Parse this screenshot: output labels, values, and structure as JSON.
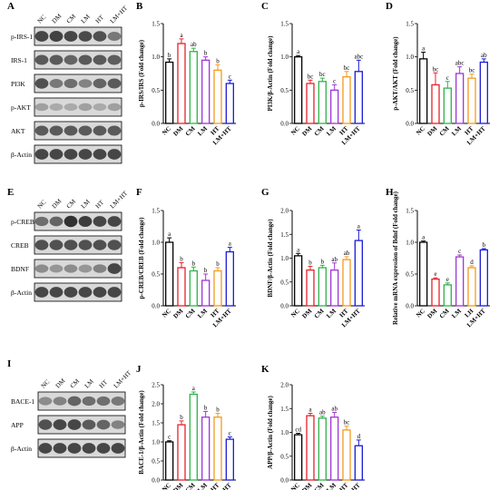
{
  "colors": {
    "NC": "#000000",
    "DM": "#e8202a",
    "CM": "#2fb34a",
    "LM": "#a034d8",
    "HT": "#f39a1c",
    "LM+HT": "#1a1ad8"
  },
  "blots": [
    {
      "panel": "A",
      "lanes": [
        "NC",
        "DM",
        "CM",
        "LM",
        "HT",
        "LM+HT"
      ],
      "bands": [
        {
          "label": "p-IRS-1",
          "intensity": [
            0.8,
            0.82,
            0.8,
            0.78,
            0.75,
            0.55
          ]
        },
        {
          "label": "IRS-1",
          "intensity": [
            0.7,
            0.7,
            0.65,
            0.7,
            0.7,
            0.68
          ]
        },
        {
          "label": "PI3K",
          "intensity": [
            0.75,
            0.55,
            0.6,
            0.5,
            0.65,
            0.7
          ]
        },
        {
          "label": "p-AKT",
          "intensity": [
            0.35,
            0.3,
            0.3,
            0.35,
            0.3,
            0.35
          ]
        },
        {
          "label": "AKT",
          "intensity": [
            0.7,
            0.7,
            0.7,
            0.7,
            0.7,
            0.7
          ]
        },
        {
          "label": "β-Actin",
          "intensity": [
            0.8,
            0.8,
            0.8,
            0.8,
            0.8,
            0.8
          ]
        }
      ]
    },
    {
      "panel": "E",
      "lanes": [
        "NC",
        "DM",
        "CM",
        "LM",
        "HT",
        "LM+HT"
      ],
      "bands": [
        {
          "label": "p-CREB",
          "intensity": [
            0.6,
            0.65,
            0.9,
            0.85,
            0.8,
            0.8
          ]
        },
        {
          "label": "CREB",
          "intensity": [
            0.75,
            0.75,
            0.75,
            0.75,
            0.75,
            0.75
          ]
        },
        {
          "label": "BDNF",
          "intensity": [
            0.45,
            0.4,
            0.45,
            0.4,
            0.5,
            0.8
          ]
        },
        {
          "label": "β-Actin",
          "intensity": [
            0.8,
            0.8,
            0.8,
            0.8,
            0.8,
            0.8
          ]
        }
      ]
    },
    {
      "panel": "I",
      "lanes": [
        "NC",
        "DM",
        "CM",
        "LM",
        "HT",
        "LM+HT"
      ],
      "bands": [
        {
          "label": "BACE-1",
          "intensity": [
            0.45,
            0.5,
            0.65,
            0.6,
            0.6,
            0.55
          ]
        },
        {
          "label": "APP",
          "intensity": [
            0.75,
            0.8,
            0.8,
            0.7,
            0.65,
            0.5
          ]
        },
        {
          "label": "β-Actin",
          "intensity": [
            0.8,
            0.8,
            0.8,
            0.8,
            0.8,
            0.8
          ]
        }
      ]
    }
  ],
  "chart_data": [
    {
      "panel": "B",
      "type": "bar",
      "categories": [
        "NC",
        "DM",
        "CM",
        "LM",
        "HT",
        "LM+HT"
      ],
      "values": [
        0.92,
        1.2,
        1.08,
        0.95,
        0.8,
        0.6
      ],
      "errors": [
        0.05,
        0.07,
        0.05,
        0.05,
        0.08,
        0.05
      ],
      "labels": [
        "b",
        "a",
        "ab",
        "b",
        "b",
        "c"
      ],
      "ylabel": "p-IRS/IRS (Fold change)",
      "ylim": [
        0,
        1.5
      ],
      "yticks": [
        0.0,
        0.5,
        1.0,
        1.5
      ]
    },
    {
      "panel": "C",
      "type": "bar",
      "categories": [
        "NC",
        "DM",
        "CM",
        "LM",
        "HT",
        "LM+HT"
      ],
      "values": [
        1.0,
        0.6,
        0.63,
        0.5,
        0.7,
        0.78
      ],
      "errors": [
        0.02,
        0.05,
        0.05,
        0.08,
        0.08,
        0.17
      ],
      "labels": [
        "a",
        "bc",
        "bc",
        "c",
        "bc",
        "abc"
      ],
      "ylabel": "PI3K/β-Actin (Fold change)",
      "ylim": [
        0,
        1.5
      ],
      "yticks": [
        0.0,
        0.5,
        1.0,
        1.5
      ]
    },
    {
      "panel": "D",
      "type": "bar",
      "categories": [
        "NC",
        "DM",
        "CM",
        "LM",
        "HT",
        "LM+HT"
      ],
      "values": [
        0.97,
        0.58,
        0.53,
        0.75,
        0.68,
        0.92
      ],
      "errors": [
        0.1,
        0.18,
        0.1,
        0.1,
        0.06,
        0.05
      ],
      "labels": [
        "a",
        "bc",
        "c",
        "abc",
        "bc",
        "ab"
      ],
      "ylabel": "p-AKT/AKT (Fold change)",
      "ylim": [
        0,
        1.5
      ],
      "yticks": [
        0.0,
        0.5,
        1.0,
        1.5
      ]
    },
    {
      "panel": "F",
      "type": "bar",
      "categories": [
        "NC",
        "DM",
        "CM",
        "LM",
        "HT",
        "LM+HT"
      ],
      "values": [
        1.0,
        0.6,
        0.55,
        0.4,
        0.55,
        0.85
      ],
      "errors": [
        0.07,
        0.08,
        0.06,
        0.1,
        0.05,
        0.07
      ],
      "labels": [
        "a",
        "b",
        "b",
        "b",
        "b",
        "a"
      ],
      "ylabel": "p-CREB/CREB (Fold change)",
      "ylim": [
        0,
        1.5
      ],
      "yticks": [
        0.0,
        0.5,
        1.0,
        1.5
      ]
    },
    {
      "panel": "G",
      "type": "bar",
      "categories": [
        "NC",
        "DM",
        "CM",
        "LM",
        "HT",
        "LM+HT"
      ],
      "values": [
        1.05,
        0.75,
        0.8,
        0.75,
        0.97,
        1.37
      ],
      "errors": [
        0.05,
        0.08,
        0.05,
        0.15,
        0.06,
        0.22
      ],
      "labels": [
        "a",
        "b",
        "b",
        "ab",
        "ab",
        "a"
      ],
      "ylabel": "BDNF/β-Actin (Fold change)",
      "ylim": [
        0,
        2.0
      ],
      "yticks": [
        0.0,
        0.5,
        1.0,
        1.5,
        2.0
      ]
    },
    {
      "panel": "H",
      "type": "bar",
      "categories": [
        "NC",
        "DM",
        "CM",
        "LM",
        "LH",
        "LM+HT"
      ],
      "values": [
        1.0,
        0.42,
        0.33,
        0.77,
        0.6,
        0.88
      ],
      "errors": [
        0.02,
        0.02,
        0.03,
        0.03,
        0.03,
        0.02
      ],
      "labels": [
        "a",
        "e",
        "e",
        "c",
        "d",
        "b"
      ],
      "ylabel": "Relative mRNA expression of Bdnf (Fold change)",
      "ylim": [
        0,
        1.5
      ],
      "yticks": [
        0.0,
        0.5,
        1.0,
        1.5
      ]
    },
    {
      "panel": "J",
      "type": "bar",
      "categories": [
        "NC",
        "DM",
        "CM",
        "LM",
        "HT",
        "LM+HT"
      ],
      "values": [
        1.0,
        1.45,
        2.25,
        1.65,
        1.65,
        1.07
      ],
      "errors": [
        0.03,
        0.1,
        0.06,
        0.15,
        0.1,
        0.06
      ],
      "labels": [
        "c",
        "b",
        "a",
        "b",
        "b",
        "c"
      ],
      "ylabel": "BACE-1/β-Actin (Fold change)",
      "ylim": [
        0,
        2.5
      ],
      "yticks": [
        0.0,
        0.5,
        1.0,
        1.5,
        2.0,
        2.5
      ]
    },
    {
      "panel": "K",
      "type": "bar",
      "categories": [
        "NC",
        "DM",
        "CM",
        "LM",
        "HT",
        "LM+HT"
      ],
      "values": [
        0.95,
        1.35,
        1.3,
        1.32,
        1.05,
        0.72
      ],
      "errors": [
        0.03,
        0.05,
        0.04,
        0.1,
        0.08,
        0.12
      ],
      "labels": [
        "cd",
        "a",
        "ab",
        "ab",
        "bc",
        "d"
      ],
      "ylabel": "APP/β-Actin (Fold change)",
      "ylim": [
        0,
        2.0
      ],
      "yticks": [
        0.0,
        0.5,
        1.0,
        1.5,
        2.0
      ]
    }
  ]
}
